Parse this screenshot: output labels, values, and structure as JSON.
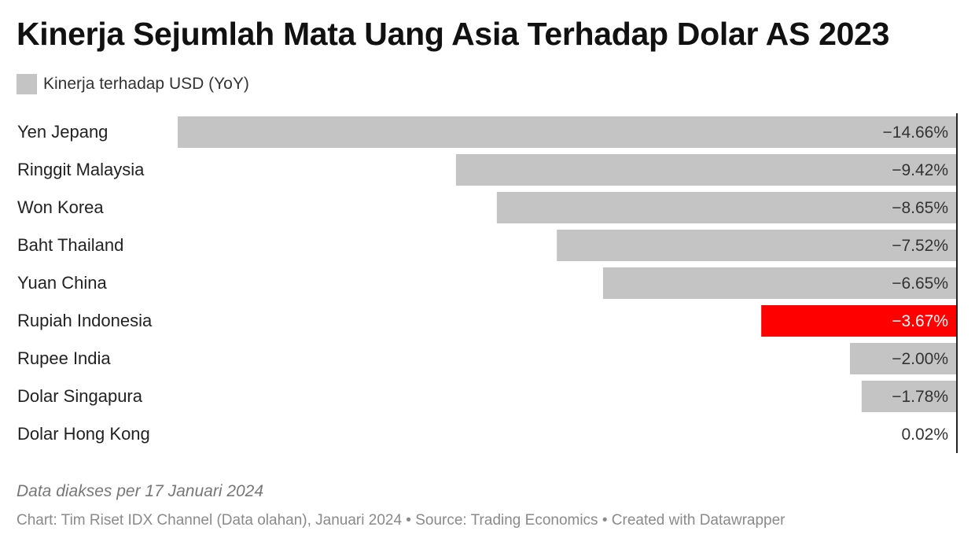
{
  "header": {
    "title": "Kinerja Sejumlah Mata Uang Asia Terhadap Dolar AS 2023"
  },
  "legend": {
    "label": "Kinerja terhadap USD (YoY)",
    "color": "#c4c4c4"
  },
  "colors": {
    "bar_default": "#c4c4c4",
    "bar_highlight": "#ff0000",
    "axis": "#222222"
  },
  "chart_data": {
    "type": "bar",
    "orientation": "horizontal",
    "categories": [
      "Yen Jepang",
      "Ringgit Malaysia",
      "Won Korea",
      "Baht Thailand",
      "Yuan China",
      "Rupiah Indonesia",
      "Rupee India",
      "Dolar Singapura",
      "Dolar Hong Kong"
    ],
    "values": [
      -14.66,
      -9.42,
      -8.65,
      -7.52,
      -6.65,
      -3.67,
      -2.0,
      -1.78,
      0.02
    ],
    "value_labels": [
      "−14.66%",
      "−9.42%",
      "−8.65%",
      "−7.52%",
      "−6.65%",
      "−3.67%",
      "−2.00%",
      "−1.78%",
      "0.02%"
    ],
    "highlight": "Rupiah Indonesia",
    "series": [
      {
        "name": "Kinerja terhadap USD (YoY)"
      }
    ],
    "title": "Kinerja Sejumlah Mata Uang Asia Terhadap Dolar AS 2023",
    "xlim": [
      -14.66,
      0
    ],
    "grid": false,
    "legend_position": "top-left"
  },
  "footer": {
    "note": "Data diakses per 17 Januari 2024",
    "credits": "Chart: Tim Riset IDX Channel (Data olahan), Januari 2024 • Source: Trading Economics • Created with Datawrapper"
  }
}
